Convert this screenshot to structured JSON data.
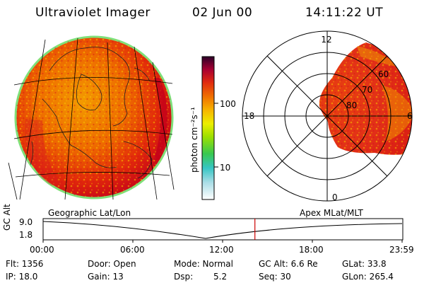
{
  "header": {
    "title": "Ultraviolet Imager",
    "date": "02 Jun 00",
    "time": "14:11:22 UT"
  },
  "colorbar": {
    "unit_label": "photon cm⁻²s⁻¹",
    "ticks": [
      "100",
      "10"
    ]
  },
  "polar": {
    "mlt_labels": [
      "12",
      "18",
      "6",
      "0"
    ],
    "lat_labels": [
      "60",
      "70",
      "80"
    ]
  },
  "plot_titles": {
    "left": "Geographic Lat/Lon",
    "right": "Apex MLat/MLT"
  },
  "altitude_plot": {
    "ylabel": "GC Alt",
    "y_ticks": [
      "9.0",
      "1.8"
    ],
    "x_ticks": [
      "00:00",
      "06:00",
      "12:00",
      "18:00",
      "23:59"
    ],
    "current_time_fraction": 0.59
  },
  "info": {
    "flt": "Flt: 1356",
    "ip": "IP: 18.0",
    "door": "Door: Open",
    "gain": "Gain: 13",
    "mode": "Mode: Normal",
    "dsp_label": "Dsp:",
    "dsp_value": "5.2",
    "gc_alt": "GC Alt: 6.6 Re",
    "seq": "Seq: 30",
    "glat": "GLat: 33.8",
    "glon": "GLon: 265.4"
  },
  "colors": {
    "background": "#ffffff",
    "marker": "#cc0000"
  }
}
